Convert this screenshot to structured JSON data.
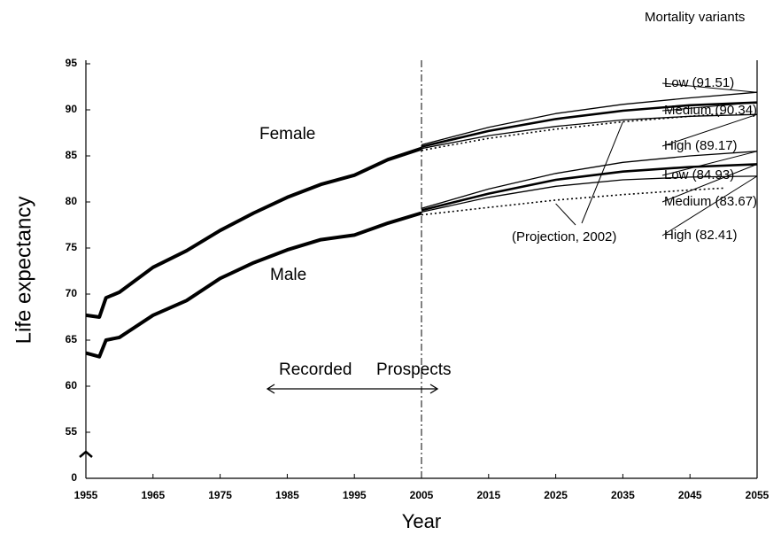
{
  "chart_data": {
    "type": "line",
    "title": "Mortality variants",
    "xlabel": "Year",
    "ylabel": "Life expectancy",
    "xlim": [
      1955,
      2055
    ],
    "xticks": [
      1955,
      1965,
      1975,
      1985,
      1995,
      2005,
      2015,
      2025,
      2035,
      2045,
      2055
    ],
    "ylim": [
      0,
      95
    ],
    "yticks": [
      0,
      55,
      60,
      65,
      70,
      75,
      80,
      85,
      90,
      95
    ],
    "axis_break": true,
    "divider": 2005,
    "annotations": [
      "Recorded",
      "Prospects"
    ],
    "series": [
      {
        "name": "Female",
        "color": "#000000",
        "line_width": 4,
        "x": [
          1955,
          1957,
          1958,
          1960,
          1965,
          1970,
          1975,
          1980,
          1985,
          1990,
          1995,
          2000,
          2005
        ],
        "values": [
          67.7,
          67.5,
          69.6,
          70.2,
          72.9,
          74.7,
          76.9,
          78.8,
          80.5,
          81.9,
          82.9,
          84.6,
          85.8
        ]
      },
      {
        "name": "Male",
        "color": "#000000",
        "line_width": 4,
        "x": [
          1955,
          1957,
          1958,
          1960,
          1965,
          1970,
          1975,
          1980,
          1985,
          1990,
          1995,
          2000,
          2005
        ],
        "values": [
          63.6,
          63.2,
          65.0,
          65.3,
          67.7,
          69.3,
          71.7,
          73.4,
          74.8,
          75.9,
          76.4,
          77.7,
          78.8
        ]
      },
      {
        "name": "Low (91.51)",
        "color": "#000000",
        "line_width": 1.3,
        "x": [
          2005,
          2015,
          2025,
          2035,
          2045,
          2055
        ],
        "values": [
          86.2,
          88.1,
          89.6,
          90.6,
          91.3,
          91.9
        ]
      },
      {
        "name": "Medium (90.34)",
        "color": "#000000",
        "line_width": 2.6,
        "x": [
          2005,
          2015,
          2025,
          2035,
          2045,
          2055
        ],
        "values": [
          86.0,
          87.7,
          89.0,
          89.9,
          90.5,
          90.8
        ]
      },
      {
        "name": "High (89.17)",
        "color": "#000000",
        "line_width": 1.3,
        "x": [
          2005,
          2015,
          2025,
          2035,
          2045,
          2055
        ],
        "values": [
          85.8,
          87.2,
          88.2,
          88.9,
          89.3,
          89.5
        ]
      },
      {
        "name": "Low (84.93)",
        "color": "#000000",
        "line_width": 1.3,
        "x": [
          2005,
          2015,
          2025,
          2035,
          2045,
          2055
        ],
        "values": [
          79.3,
          81.4,
          83.1,
          84.3,
          85.0,
          85.5
        ]
      },
      {
        "name": "Medium (83.67)",
        "color": "#000000",
        "line_width": 2.6,
        "x": [
          2005,
          2015,
          2025,
          2035,
          2045,
          2055
        ],
        "values": [
          79.1,
          80.9,
          82.4,
          83.3,
          83.8,
          84.1
        ]
      },
      {
        "name": "High (82.41)",
        "color": "#000000",
        "line_width": 1.3,
        "x": [
          2005,
          2015,
          2025,
          2035,
          2045,
          2055
        ],
        "values": [
          78.9,
          80.5,
          81.7,
          82.4,
          82.7,
          82.8
        ]
      }
    ],
    "projection_2002": {
      "label": "(Projection, 2002)",
      "color": "#000000",
      "series": [
        {
          "x": [
            2005,
            2015,
            2025,
            2035,
            2045,
            2050
          ],
          "values": [
            85.6,
            86.9,
            87.9,
            88.7,
            89.3,
            89.6
          ]
        },
        {
          "x": [
            2005,
            2015,
            2025,
            2035,
            2045,
            2050
          ],
          "values": [
            78.6,
            79.4,
            80.2,
            80.8,
            81.3,
            81.5
          ]
        }
      ]
    }
  }
}
